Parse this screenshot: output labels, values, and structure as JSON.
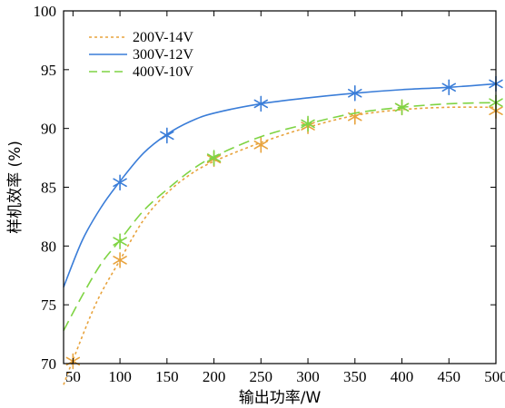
{
  "chart_data": {
    "type": "line",
    "title": "",
    "xlabel": "输出功率/W",
    "ylabel": "样机效率 (%)",
    "xlim": [
      40,
      500
    ],
    "ylim": [
      70,
      100
    ],
    "xticks": [
      50,
      100,
      150,
      200,
      250,
      300,
      350,
      400,
      450,
      500
    ],
    "yticks": [
      70,
      75,
      80,
      85,
      90,
      95,
      100
    ],
    "grid": false,
    "legend_position": "top-left",
    "series": [
      {
        "name": "200V-14V",
        "color": "#e8a33d",
        "line_style": "dotted",
        "marker": "asterisk",
        "x": [
          50,
          100,
          200,
          250,
          300,
          350,
          400,
          500
        ],
        "y": [
          70.2,
          78.8,
          87.4,
          88.6,
          90.2,
          91.0,
          91.8,
          91.5
        ],
        "curve_x": [
          40,
          50,
          75,
          100,
          125,
          150,
          175,
          200,
          250,
          300,
          350,
          400,
          450,
          500
        ],
        "curve_y": [
          68.2,
          70.3,
          75.2,
          78.8,
          82.2,
          84.5,
          86.1,
          87.2,
          88.8,
          90.1,
          91.1,
          91.6,
          91.8,
          91.8
        ]
      },
      {
        "name": "300V-12V",
        "color": "#3a7dd8",
        "line_style": "solid",
        "marker": "asterisk",
        "x": [
          100,
          150,
          250,
          350,
          450,
          500
        ],
        "y": [
          85.4,
          89.4,
          92.1,
          93.0,
          93.5,
          93.8
        ],
        "curve_x": [
          40,
          60,
          80,
          100,
          125,
          150,
          175,
          200,
          250,
          300,
          350,
          400,
          450,
          500
        ],
        "curve_y": [
          76.5,
          80.5,
          83.3,
          85.5,
          87.9,
          89.5,
          90.6,
          91.3,
          92.1,
          92.6,
          93.0,
          93.3,
          93.5,
          93.8
        ]
      },
      {
        "name": "400V-10V",
        "color": "#7fd444",
        "line_style": "dashed",
        "marker": "asterisk",
        "x": [
          100,
          200,
          300,
          400,
          500
        ],
        "y": [
          80.4,
          87.5,
          90.4,
          91.8,
          92.2
        ],
        "curve_x": [
          40,
          60,
          80,
          100,
          125,
          150,
          175,
          200,
          250,
          300,
          350,
          400,
          450,
          500
        ],
        "curve_y": [
          72.8,
          75.8,
          78.5,
          80.5,
          83.0,
          84.8,
          86.4,
          87.6,
          89.3,
          90.4,
          91.3,
          91.8,
          92.1,
          92.2
        ]
      }
    ]
  }
}
